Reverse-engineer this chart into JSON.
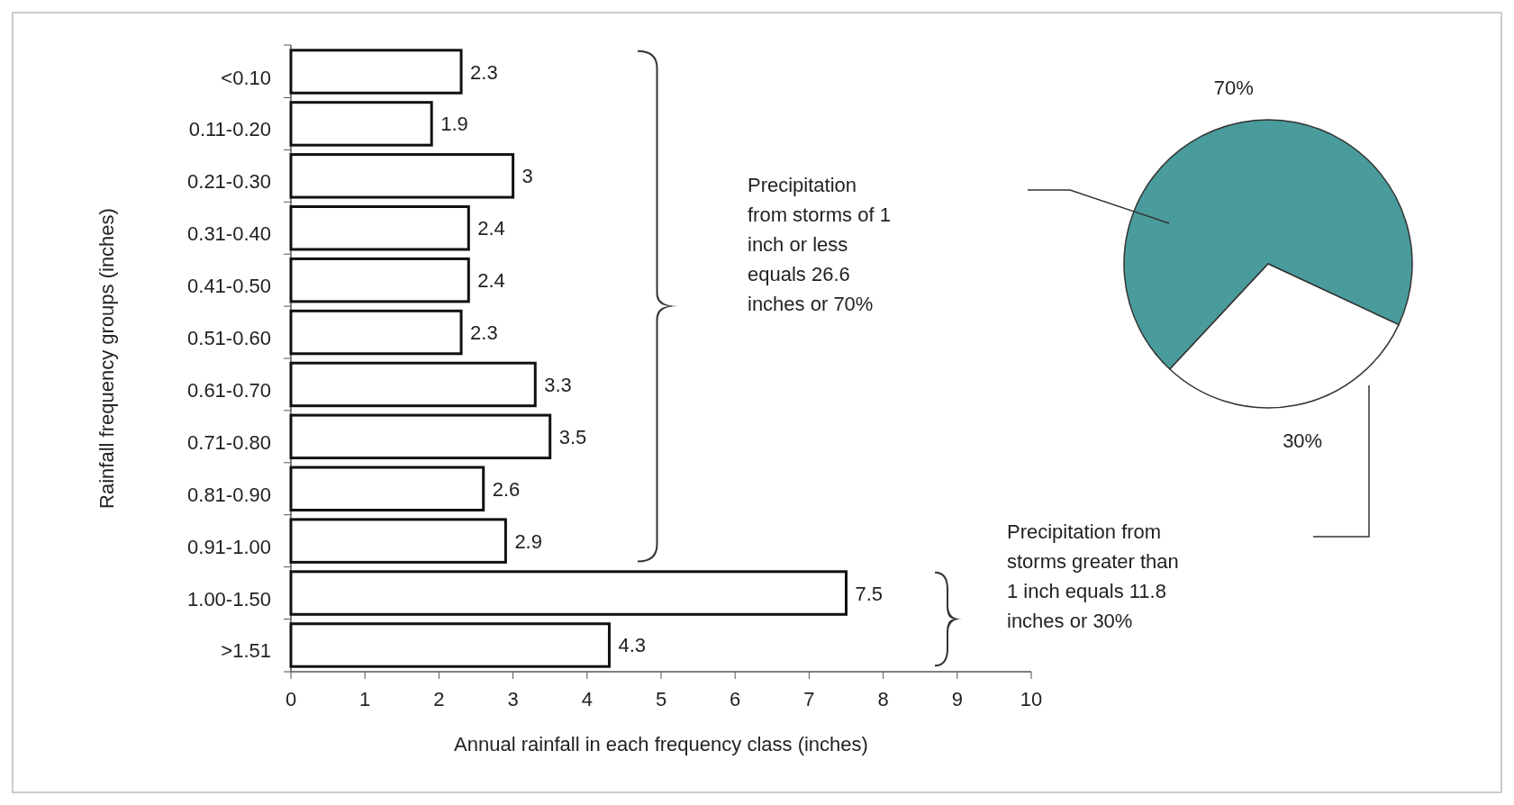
{
  "chart_data": [
    {
      "type": "bar",
      "orientation": "horizontal",
      "categories": [
        "<0.10",
        "0.11-0.20",
        "0.21-0.30",
        "0.31-0.40",
        "0.41-0.50",
        "0.51-0.60",
        "0.61-0.70",
        "0.71-0.80",
        "0.81-0.90",
        "0.91-1.00",
        "1.00-1.50",
        ">1.51"
      ],
      "values": [
        2.3,
        1.9,
        3,
        2.4,
        2.4,
        2.3,
        3.3,
        3.5,
        2.6,
        2.9,
        7.5,
        4.3
      ],
      "color": "#ffffff",
      "data_labels": true,
      "xlim": [
        0,
        10
      ],
      "xticks": [
        0,
        1,
        2,
        3,
        4,
        5,
        6,
        7,
        8,
        9,
        10
      ],
      "xlabel": "Annual rainfall in each frequency class (inches)",
      "ylabel": "Rainfall frequency groups (inches)",
      "grid": false
    },
    {
      "type": "pie",
      "categories": [
        null,
        null
      ],
      "values": [
        70,
        30
      ],
      "colors": [
        "#4a9b9b",
        "#ffffff"
      ],
      "value_labels": [
        "70%",
        "30%"
      ],
      "annotations": [
        "Precipitation from storms of 1 inch or less equals 26.6 inches or 70%",
        "Precipitation from storms greater than 1 inch equals 11.8 inches or 30%"
      ]
    }
  ]
}
